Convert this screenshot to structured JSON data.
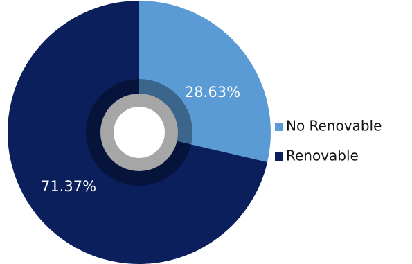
{
  "chart_data": {
    "type": "pie",
    "title": "",
    "categories": [
      "No Renovable",
      "Renovable"
    ],
    "values": [
      28.63,
      71.37
    ],
    "value_labels": [
      "28.63%",
      "71.37%"
    ],
    "colors": [
      "#5b9bd5",
      "#0a1f5c"
    ],
    "legend": {
      "position": "right",
      "entries": [
        "No Renovable",
        "Renovable"
      ]
    },
    "grid": false
  }
}
